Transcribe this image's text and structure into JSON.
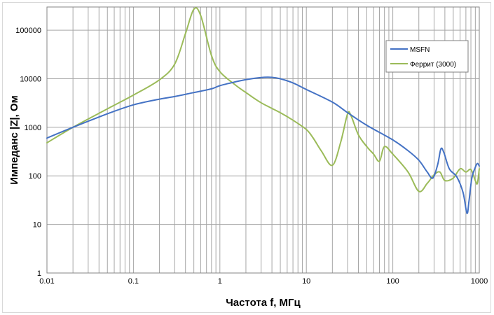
{
  "chart_data": {
    "type": "line",
    "title": "",
    "xlabel": "Частота f, МГц",
    "ylabel": "Импеданс |Z|, Ом",
    "x_scale": "log",
    "y_scale": "log",
    "xlim": [
      0.01,
      1000
    ],
    "ylim": [
      1,
      300000
    ],
    "x_ticks": [
      "0.01",
      "0.1",
      "1",
      "10",
      "100",
      "1000"
    ],
    "y_ticks": [
      "1",
      "10",
      "100",
      "1000",
      "10000",
      "100000"
    ],
    "grid": true,
    "legend_position": "top-right",
    "series": [
      {
        "name": "MSFN",
        "color": "#4472c4",
        "points": [
          [
            0.01,
            600
          ],
          [
            0.02,
            1000
          ],
          [
            0.05,
            1900
          ],
          [
            0.1,
            2900
          ],
          [
            0.2,
            3800
          ],
          [
            0.3,
            4300
          ],
          [
            0.5,
            5200
          ],
          [
            0.8,
            6200
          ],
          [
            1,
            7200
          ],
          [
            1.5,
            8600
          ],
          [
            2,
            9600
          ],
          [
            3,
            10600
          ],
          [
            4,
            10700
          ],
          [
            5,
            10000
          ],
          [
            7,
            8200
          ],
          [
            10,
            6000
          ],
          [
            20,
            3300
          ],
          [
            30,
            2000
          ],
          [
            50,
            1100
          ],
          [
            100,
            550
          ],
          [
            150,
            330
          ],
          [
            200,
            210
          ],
          [
            250,
            120
          ],
          [
            290,
            90
          ],
          [
            330,
            170
          ],
          [
            360,
            360
          ],
          [
            390,
            300
          ],
          [
            450,
            140
          ],
          [
            550,
            95
          ],
          [
            650,
            45
          ],
          [
            720,
            17
          ],
          [
            760,
            30
          ],
          [
            820,
            90
          ],
          [
            900,
            150
          ],
          [
            950,
            180
          ],
          [
            1000,
            160
          ]
        ]
      },
      {
        "name": "Феррит (3000)",
        "color": "#9bbb59",
        "points": [
          [
            0.01,
            480
          ],
          [
            0.02,
            1000
          ],
          [
            0.05,
            2400
          ],
          [
            0.1,
            4600
          ],
          [
            0.2,
            9500
          ],
          [
            0.3,
            20000
          ],
          [
            0.4,
            85000
          ],
          [
            0.5,
            270000
          ],
          [
            0.6,
            200000
          ],
          [
            0.8,
            30000
          ],
          [
            1,
            14000
          ],
          [
            1.5,
            7500
          ],
          [
            2,
            5200
          ],
          [
            3,
            3200
          ],
          [
            5,
            2000
          ],
          [
            7,
            1400
          ],
          [
            10,
            900
          ],
          [
            12,
            600
          ],
          [
            15,
            320
          ],
          [
            20,
            165
          ],
          [
            25,
            500
          ],
          [
            30,
            1900
          ],
          [
            33,
            1700
          ],
          [
            40,
            700
          ],
          [
            50,
            400
          ],
          [
            60,
            280
          ],
          [
            70,
            200
          ],
          [
            80,
            400
          ],
          [
            100,
            280
          ],
          [
            150,
            120
          ],
          [
            200,
            48
          ],
          [
            250,
            70
          ],
          [
            300,
            105
          ],
          [
            350,
            120
          ],
          [
            400,
            80
          ],
          [
            500,
            90
          ],
          [
            600,
            140
          ],
          [
            700,
            120
          ],
          [
            800,
            135
          ],
          [
            900,
            80
          ],
          [
            950,
            70
          ],
          [
            1000,
            140
          ]
        ]
      }
    ]
  }
}
